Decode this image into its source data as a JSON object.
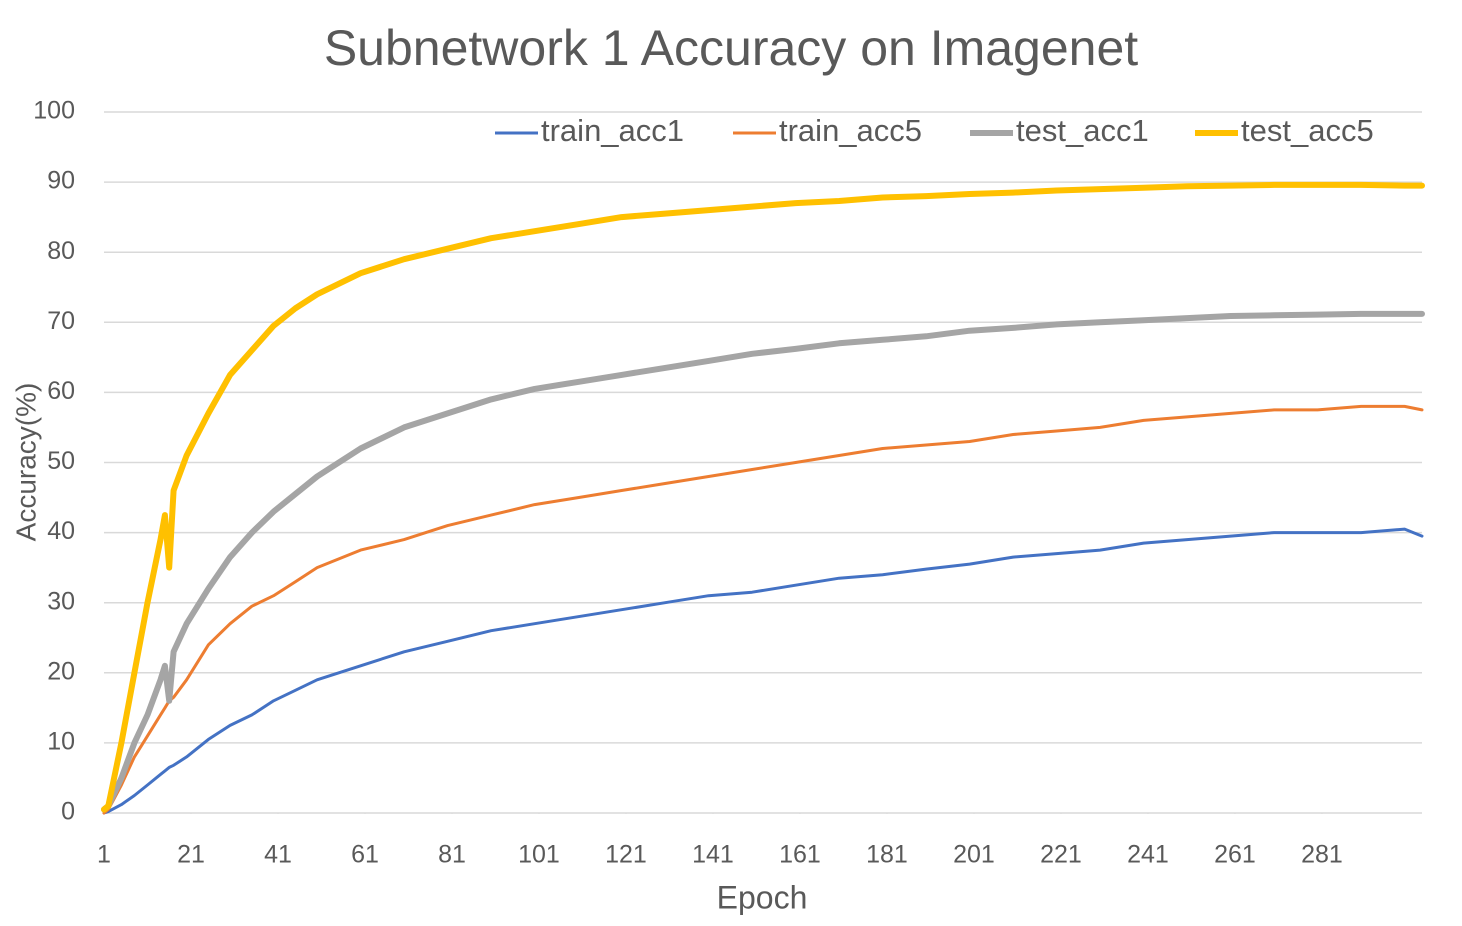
{
  "chart_data": {
    "type": "line",
    "title": "Subnetwork 1 Accuracy on Imagenet",
    "x_label": "Epoch",
    "y_label": "Accuracy(%)",
    "x": [
      1,
      2,
      5,
      8,
      11,
      14,
      15,
      16,
      17,
      20,
      25,
      30,
      35,
      40,
      45,
      50,
      60,
      70,
      80,
      90,
      100,
      110,
      120,
      130,
      140,
      150,
      160,
      170,
      180,
      190,
      200,
      210,
      220,
      230,
      240,
      250,
      260,
      270,
      280,
      290,
      300,
      304
    ],
    "series": [
      {
        "name": "train_acc1",
        "color": "#4472c4",
        "values": [
          0,
          0.2,
          1.2,
          2.5,
          4,
          5.5,
          6,
          6.5,
          6.8,
          8,
          10.5,
          12.5,
          14,
          16,
          17.5,
          19,
          21,
          23,
          24.5,
          26,
          27,
          28,
          29,
          30,
          31,
          31.5,
          32.5,
          33.5,
          34,
          34.8,
          35.5,
          36.5,
          37,
          37.5,
          38.5,
          39,
          39.5,
          40,
          40,
          40,
          40.5,
          39.5
        ]
      },
      {
        "name": "train_acc5",
        "color": "#ed7d31",
        "values": [
          0,
          0.5,
          4,
          8,
          11,
          14,
          15,
          16,
          16.5,
          19,
          24,
          27,
          29.5,
          31,
          33,
          35,
          37.5,
          39,
          41,
          42.5,
          44,
          45,
          46,
          47,
          48,
          49,
          50,
          51,
          52,
          52.5,
          53,
          54,
          54.5,
          55,
          56,
          56.5,
          57,
          57.5,
          57.5,
          58,
          58,
          57.5
        ]
      },
      {
        "name": "test_acc1",
        "color": "#a5a5a5",
        "values": [
          0.5,
          1,
          5,
          10,
          14,
          19,
          21,
          16,
          23,
          27,
          32,
          36.5,
          40,
          43,
          45.5,
          48,
          52,
          55,
          57,
          59,
          60.5,
          61.5,
          62.5,
          63.5,
          64.5,
          65.5,
          66.2,
          67,
          67.5,
          68,
          68.8,
          69.2,
          69.7,
          70,
          70.3,
          70.6,
          70.9,
          71,
          71.1,
          71.2,
          71.2,
          71.2
        ]
      },
      {
        "name": "test_acc5",
        "color": "#ffc000",
        "values": [
          0.5,
          1,
          10,
          20,
          30,
          39,
          42.5,
          35,
          46,
          51,
          57,
          62.5,
          66,
          69.5,
          72,
          74,
          77,
          79,
          80.5,
          82,
          83,
          84,
          85,
          85.5,
          86,
          86.5,
          87,
          87.3,
          87.8,
          88,
          88.3,
          88.5,
          88.8,
          89,
          89.2,
          89.4,
          89.5,
          89.6,
          89.6,
          89.6,
          89.5,
          89.5
        ]
      }
    ],
    "xlim": [
      1,
      304
    ],
    "xticks": [
      1,
      21,
      41,
      61,
      81,
      101,
      121,
      141,
      161,
      181,
      201,
      221,
      241,
      261,
      281
    ],
    "ylim": [
      0,
      100
    ],
    "yticks": [
      0,
      10,
      20,
      30,
      40,
      50,
      60,
      70,
      80,
      90,
      100
    ],
    "grid": true,
    "legend": "top-right"
  }
}
